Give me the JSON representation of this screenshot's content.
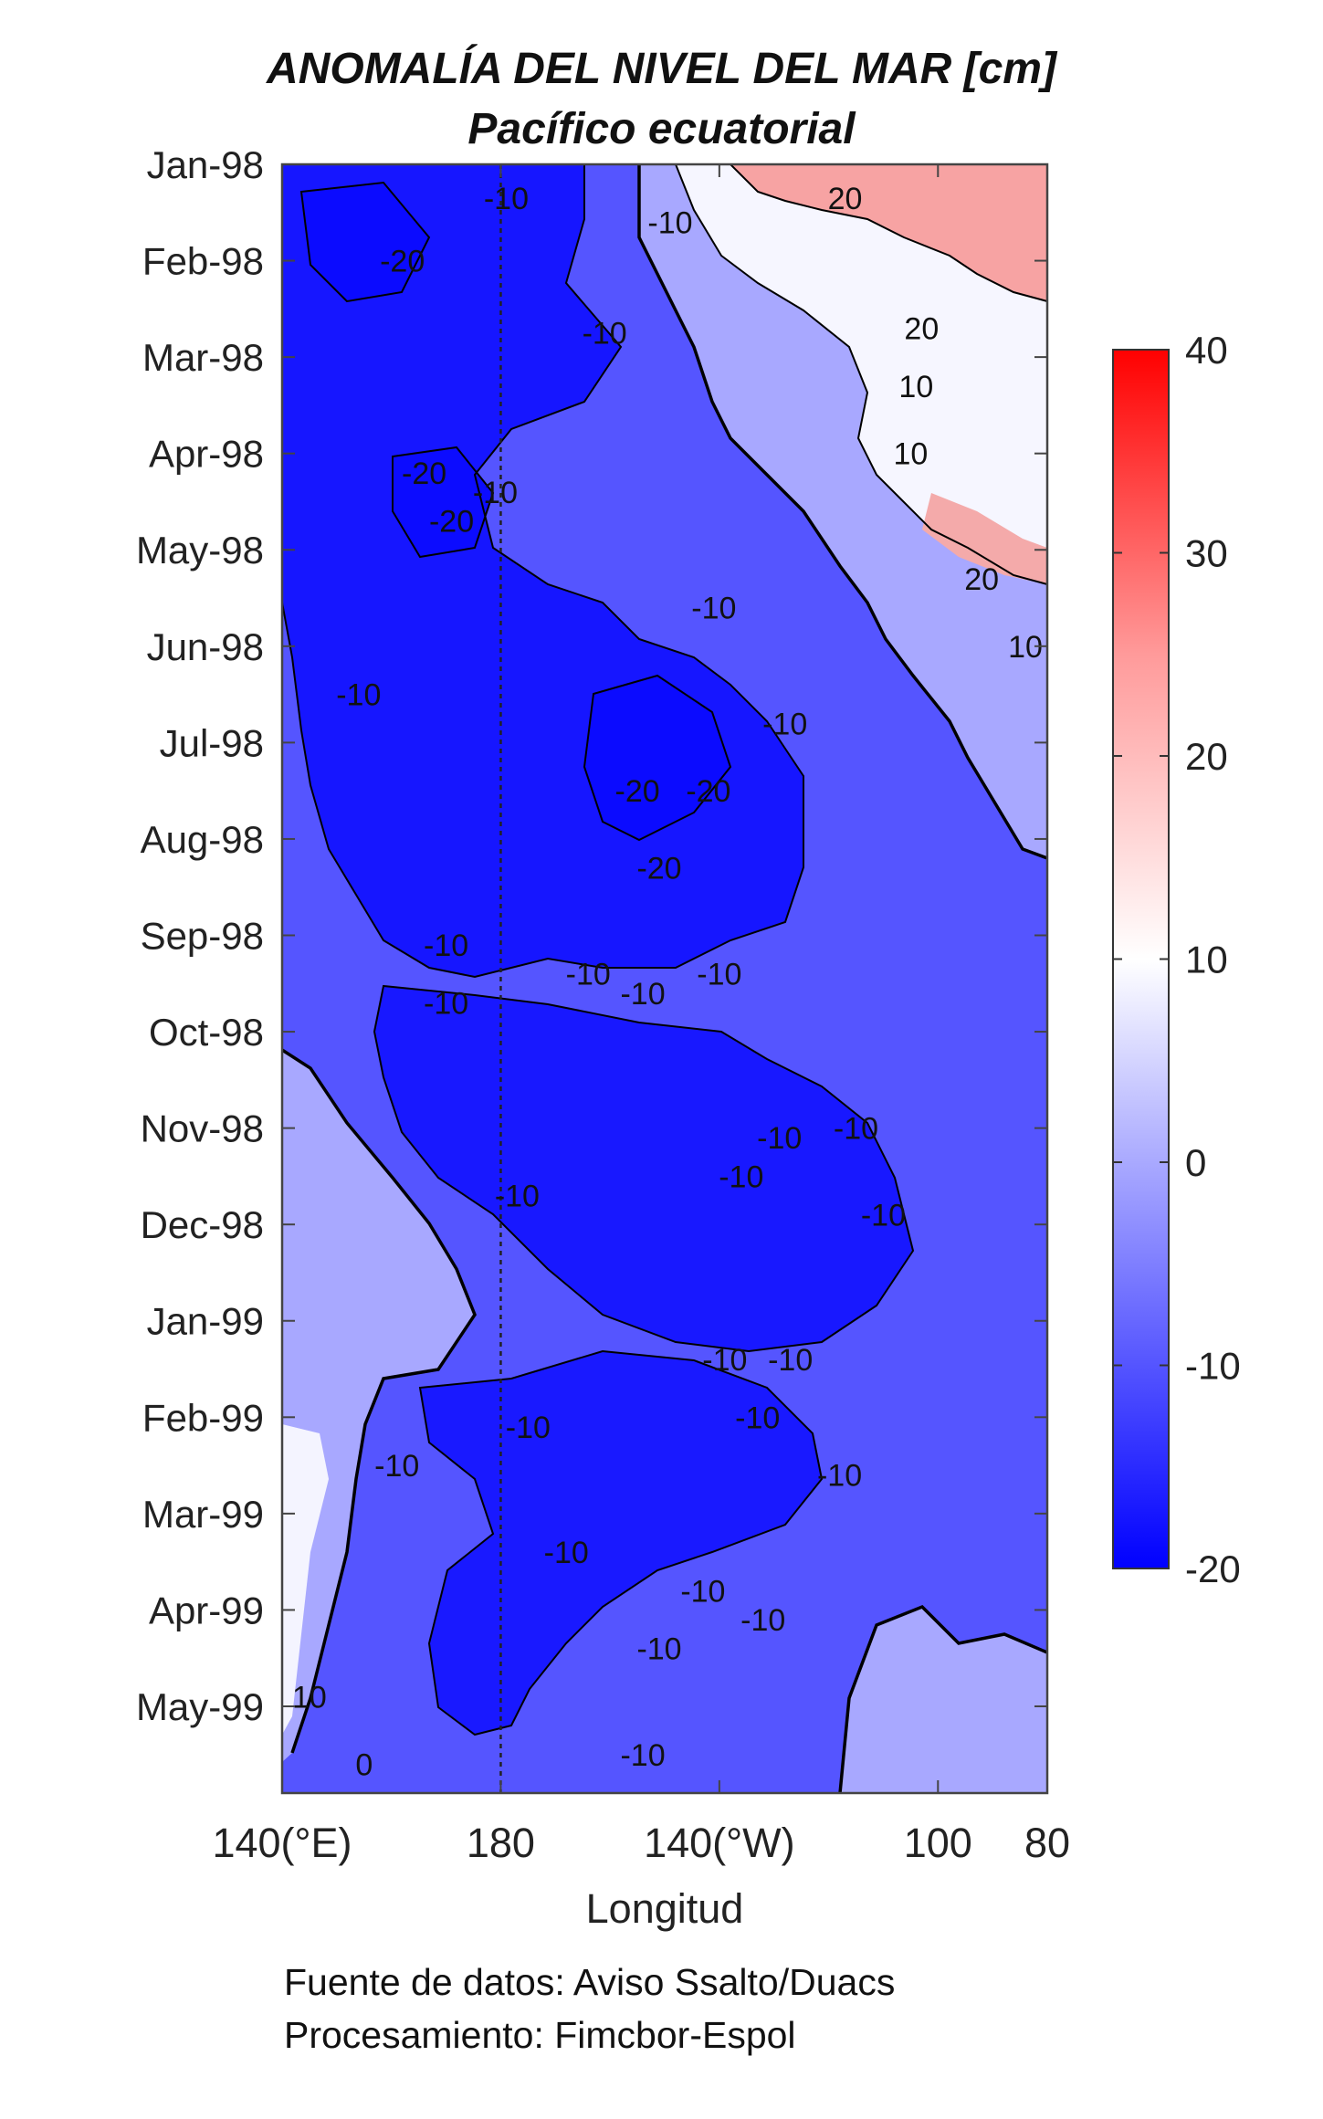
{
  "title": "ANOMALÍA DEL NIVEL DEL MAR [cm]",
  "subtitle": "Pacífico ecuatorial",
  "credits": {
    "line1": "Fuente de datos: Aviso Ssalto/Duacs",
    "line2": "Procesamiento: Fimcbor-Espol"
  },
  "chart_data": {
    "type": "heatmap",
    "title": "ANOMALÍA DEL NIVEL DEL MAR [cm]",
    "subtitle": "Pacífico ecuatorial",
    "xlabel": "Longitud",
    "ylabel": "",
    "x_ticks": [
      {
        "value": 140,
        "label": "140(°E)"
      },
      {
        "value": 180,
        "label": "180"
      },
      {
        "value": 220,
        "label": "140(°W)"
      },
      {
        "value": 260,
        "label": "100"
      },
      {
        "value": 280,
        "label": "80"
      }
    ],
    "xlim": [
      140,
      280
    ],
    "y_ticks": [
      "Jan-98",
      "Feb-98",
      "Mar-98",
      "Apr-98",
      "May-98",
      "Jun-98",
      "Jul-98",
      "Aug-98",
      "Sep-98",
      "Oct-98",
      "Nov-98",
      "Dec-98",
      "Jan-99",
      "Feb-99",
      "Mar-99",
      "Apr-99",
      "May-99"
    ],
    "ylim_months": [
      0,
      16.9
    ],
    "dateline_marker": 180,
    "colorbar": {
      "ticks": [
        40,
        30,
        20,
        10,
        0,
        -10,
        -20
      ],
      "range": [
        -20,
        40
      ],
      "colormap": [
        "#0000ff",
        "#ffffff",
        "#ff0000"
      ]
    },
    "levels": [
      -20,
      -10,
      0,
      10,
      20,
      30,
      40
    ],
    "contour_labels": [
      {
        "x": 181,
        "y": 0.35,
        "text": "-10"
      },
      {
        "x": 162,
        "y": 1.0,
        "text": "-20"
      },
      {
        "x": 211,
        "y": 0.6,
        "text": "-10"
      },
      {
        "x": 243,
        "y": 0.35,
        "text": "20"
      },
      {
        "x": 257,
        "y": 1.7,
        "text": "20"
      },
      {
        "x": 256,
        "y": 2.3,
        "text": "10"
      },
      {
        "x": 255,
        "y": 3.0,
        "text": "10"
      },
      {
        "x": 199,
        "y": 1.75,
        "text": "-10"
      },
      {
        "x": 166,
        "y": 3.2,
        "text": "-20"
      },
      {
        "x": 171,
        "y": 3.7,
        "text": "-20"
      },
      {
        "x": 179,
        "y": 3.4,
        "text": "-10"
      },
      {
        "x": 219,
        "y": 4.6,
        "text": "-10"
      },
      {
        "x": 268,
        "y": 4.3,
        "text": "20"
      },
      {
        "x": 276,
        "y": 5.0,
        "text": "10"
      },
      {
        "x": 154,
        "y": 5.5,
        "text": "-10"
      },
      {
        "x": 232,
        "y": 5.8,
        "text": "-10"
      },
      {
        "x": 205,
        "y": 6.5,
        "text": "-20"
      },
      {
        "x": 218,
        "y": 6.5,
        "text": "-20"
      },
      {
        "x": 209,
        "y": 7.3,
        "text": "-20"
      },
      {
        "x": 170,
        "y": 8.1,
        "text": "-10"
      },
      {
        "x": 170,
        "y": 8.7,
        "text": "-10"
      },
      {
        "x": 196,
        "y": 8.4,
        "text": "-10"
      },
      {
        "x": 206,
        "y": 8.6,
        "text": "-10"
      },
      {
        "x": 220,
        "y": 8.4,
        "text": "-10"
      },
      {
        "x": 245,
        "y": 10.0,
        "text": "-10"
      },
      {
        "x": 224,
        "y": 10.5,
        "text": "-10"
      },
      {
        "x": 231,
        "y": 10.1,
        "text": "-10"
      },
      {
        "x": 250,
        "y": 10.9,
        "text": "-10"
      },
      {
        "x": 183,
        "y": 10.7,
        "text": "-10"
      },
      {
        "x": 221,
        "y": 12.4,
        "text": "-10"
      },
      {
        "x": 233,
        "y": 12.4,
        "text": "-10"
      },
      {
        "x": 227,
        "y": 13.0,
        "text": "-10"
      },
      {
        "x": 185,
        "y": 13.1,
        "text": "-10"
      },
      {
        "x": 242,
        "y": 13.6,
        "text": "-10"
      },
      {
        "x": 161,
        "y": 13.5,
        "text": "-10"
      },
      {
        "x": 192,
        "y": 14.4,
        "text": "-10"
      },
      {
        "x": 217,
        "y": 14.8,
        "text": "-10"
      },
      {
        "x": 228,
        "y": 15.1,
        "text": "-10"
      },
      {
        "x": 209,
        "y": 15.4,
        "text": "-10"
      },
      {
        "x": 145,
        "y": 15.9,
        "text": "10"
      },
      {
        "x": 155,
        "y": 16.6,
        "text": "0"
      },
      {
        "x": 206,
        "y": 16.5,
        "text": "-10"
      }
    ]
  }
}
